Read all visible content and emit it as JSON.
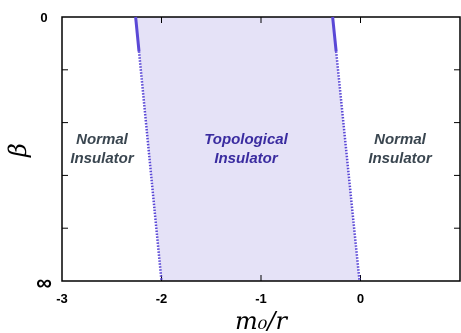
{
  "chart_data": {
    "type": "area",
    "title": "",
    "xlabel": "m₀/r",
    "ylabel": "β",
    "xlim": [
      -3,
      1
    ],
    "x_ticks": [
      "-3",
      "-2",
      "-1",
      "0"
    ],
    "y_ticks": [
      "0",
      "∞"
    ],
    "grid": false,
    "regions": [
      {
        "name_line1": "Normal",
        "name_line2": "Insulator",
        "color": "#3a4650"
      },
      {
        "name_line1": "Topological",
        "name_line2": "Insulator",
        "color": "#3a2ca0"
      },
      {
        "name_line1": "Normal",
        "name_line2": "Insulator",
        "color": "#3a4650"
      }
    ],
    "boundaries": [
      {
        "name": "left",
        "beta0_x": -2.26,
        "betainf_x": -2.0
      },
      {
        "name": "right",
        "beta0_x": -0.28,
        "betainf_x": -0.01
      }
    ],
    "fill_color": "#e5e2f7",
    "line_color": "#5a48d6"
  }
}
